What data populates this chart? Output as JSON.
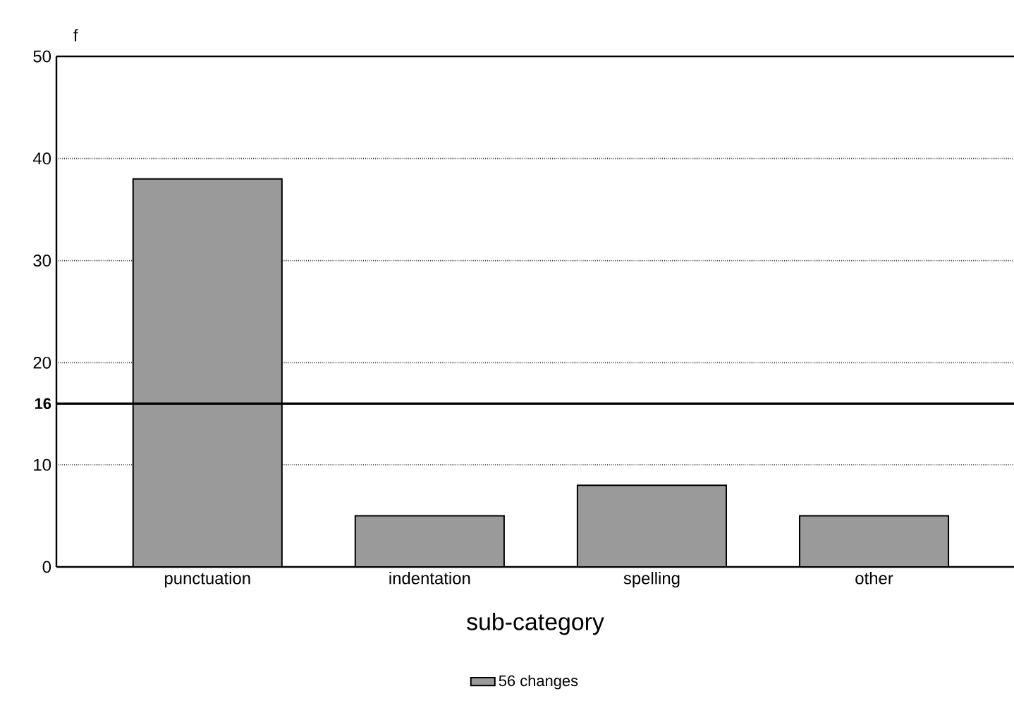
{
  "chart_data": {
    "type": "bar",
    "xlabel": "sub-category",
    "ylabel": "f",
    "categories": [
      "punctuation",
      "indentation",
      "spelling",
      "other"
    ],
    "series": [
      {
        "name": "56 changes",
        "color": "#9a9a9a",
        "values": [
          38,
          5,
          8,
          5
        ]
      }
    ],
    "ylim": [
      0,
      50
    ],
    "yticks": [
      0,
      10,
      20,
      30,
      40,
      50
    ],
    "grid": "y",
    "legend": "bottom",
    "ref_lines": [
      {
        "axis": "y",
        "value": 16,
        "label": "16"
      }
    ]
  }
}
